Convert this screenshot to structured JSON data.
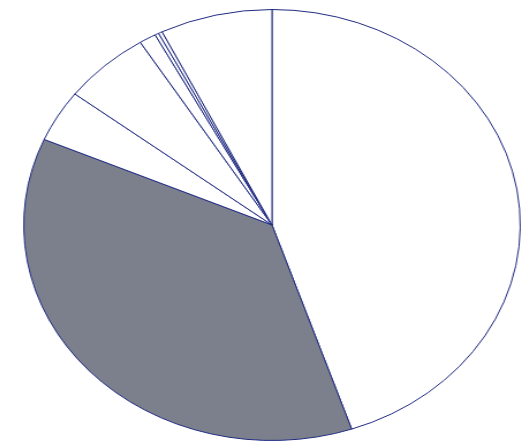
{
  "chart_data": {
    "type": "pie",
    "values": [
      44.8,
      36.7,
      3.9,
      5.7,
      1.1,
      0.25,
      0.25,
      7.3
    ],
    "colors": [
      "#ffffff",
      "#7b808c",
      "#ffffff",
      "#ffffff",
      "#ffffff",
      "#ffffff",
      "#ffffff",
      "#ffffff"
    ],
    "color": "#1f2a80"
  }
}
